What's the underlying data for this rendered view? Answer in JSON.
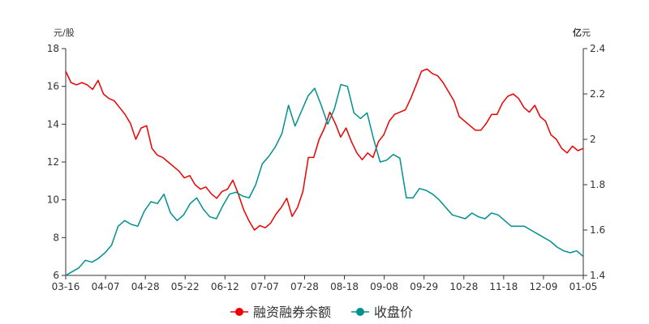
{
  "chart_data": {
    "type": "line",
    "left_axis": {
      "unit_label": "元/股",
      "ylim": [
        6,
        18
      ],
      "ticks": [
        "6",
        "8",
        "10",
        "12",
        "14",
        "16",
        "18"
      ]
    },
    "right_axis": {
      "unit_label_bold": "亿",
      "unit_label": "元",
      "ylim": [
        1.4,
        2.4
      ],
      "ticks": [
        "1.4",
        "1.6",
        "1.8",
        "2",
        "2.2",
        "2.4"
      ]
    },
    "x_ticks": [
      "03-16",
      "04-07",
      "04-28",
      "05-22",
      "06-12",
      "07-07",
      "07-28",
      "08-18",
      "09-08",
      "09-29",
      "10-28",
      "11-18",
      "12-09",
      "01-05"
    ],
    "grid": false,
    "legend_position": "bottom",
    "series": [
      {
        "name": "融资融券余额",
        "axis": "right",
        "color": "#ee0000",
        "values": [
          2.3,
          2.25,
          2.24,
          2.25,
          2.24,
          2.22,
          2.26,
          2.2,
          2.18,
          2.17,
          2.14,
          2.11,
          2.07,
          2.0,
          2.05,
          2.06,
          1.96,
          1.93,
          1.92,
          1.9,
          1.88,
          1.86,
          1.83,
          1.84,
          1.8,
          1.78,
          1.79,
          1.76,
          1.74,
          1.77,
          1.78,
          1.82,
          1.76,
          1.69,
          1.64,
          1.6,
          1.62,
          1.61,
          1.63,
          1.67,
          1.7,
          1.74,
          1.66,
          1.7,
          1.77,
          1.92,
          1.92,
          2.0,
          2.05,
          2.12,
          2.07,
          2.01,
          2.05,
          1.99,
          1.94,
          1.91,
          1.94,
          1.92,
          1.99,
          2.02,
          2.08,
          2.11,
          2.12,
          2.13,
          2.18,
          2.24,
          2.3,
          2.31,
          2.29,
          2.28,
          2.25,
          2.21,
          2.17,
          2.1,
          2.08,
          2.06,
          2.04,
          2.04,
          2.07,
          2.11,
          2.11,
          2.16,
          2.19,
          2.2,
          2.18,
          2.14,
          2.12,
          2.15,
          2.1,
          2.08,
          2.02,
          2.0,
          1.96,
          1.94,
          1.97,
          1.95,
          1.96
        ]
      },
      {
        "name": "收盘价",
        "axis": "left",
        "color": "#009090",
        "values": [
          6.0,
          6.2,
          6.4,
          6.8,
          6.7,
          6.9,
          7.2,
          7.6,
          8.6,
          8.9,
          8.7,
          8.6,
          9.4,
          9.9,
          9.8,
          10.3,
          9.3,
          8.9,
          9.2,
          9.8,
          10.1,
          9.5,
          9.1,
          9.0,
          9.7,
          10.3,
          10.4,
          10.2,
          10.1,
          10.8,
          11.9,
          12.3,
          12.8,
          13.5,
          15.0,
          13.9,
          14.7,
          15.5,
          15.9,
          15.0,
          14.0,
          14.8,
          16.1,
          16.0,
          14.6,
          14.3,
          14.6,
          13.2,
          12.0,
          12.1,
          12.4,
          12.2,
          10.1,
          10.1,
          10.6,
          10.5,
          10.3,
          10.0,
          9.6,
          9.2,
          9.1,
          9.0,
          9.3,
          9.1,
          9.0,
          9.3,
          9.2,
          8.9,
          8.6,
          8.6,
          8.6,
          8.4,
          8.2,
          8.0,
          7.8,
          7.5,
          7.3,
          7.2,
          7.3,
          7.0
        ]
      }
    ]
  }
}
